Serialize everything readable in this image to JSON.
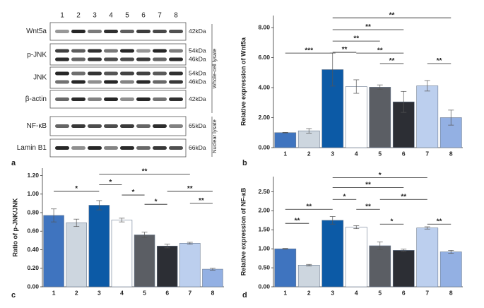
{
  "blot": {
    "lanes": [
      "1",
      "2",
      "3",
      "4",
      "5",
      "6",
      "7",
      "8"
    ],
    "rows": [
      {
        "label": "Wnt5a",
        "sizes": [
          "42kDa"
        ]
      },
      {
        "label": "p-JNK",
        "sizes": [
          "54kDa",
          "46kDa"
        ]
      },
      {
        "label": "JNK",
        "sizes": [
          "54kDa",
          "46kDa"
        ]
      },
      {
        "label": "β-actin",
        "sizes": [
          "42kDa"
        ]
      },
      {
        "label": "NF-κB",
        "sizes": [
          "65kDa"
        ]
      },
      {
        "label": "Lamin B1",
        "sizes": [
          "66kDa"
        ]
      }
    ],
    "groups": [
      "Whole-cell lysate",
      "Nuclear lysate"
    ]
  },
  "panel_labels": [
    "a",
    "b",
    "c",
    "d"
  ],
  "chart_data": [
    {
      "type": "bar",
      "ylabel": "Relative expression of Wnt5a",
      "categories": [
        "1",
        "2",
        "3",
        "4",
        "5",
        "6",
        "7",
        "8"
      ],
      "values": [
        1.0,
        1.12,
        5.2,
        4.07,
        4.03,
        3.05,
        4.12,
        2.0
      ],
      "errors": [
        0.02,
        0.15,
        1.1,
        0.45,
        0.15,
        0.7,
        0.35,
        0.5
      ],
      "colors": [
        "#3f74bf",
        "#cdd6df",
        "#0c5aa6",
        "#ffffff",
        "#5b5e64",
        "#2c2e34",
        "#bccfee",
        "#93b0e3"
      ],
      "ylim": [
        0,
        8.8
      ],
      "yticks": [
        {
          "value": 0,
          "label": "0.00"
        },
        {
          "value": 2,
          "label": "2.00"
        },
        {
          "value": 4,
          "label": "4.00"
        },
        {
          "value": 6,
          "label": "6.00"
        },
        {
          "value": 8,
          "label": "8.00"
        }
      ],
      "brackets": [
        {
          "from": "3",
          "to": "8",
          "y": 8.65,
          "label": "**"
        },
        {
          "from": "3",
          "to": "6",
          "y": 7.86,
          "label": "**"
        },
        {
          "from": "3",
          "to": "5",
          "y": 7.1,
          "label": "**"
        },
        {
          "from": "1",
          "to": "3",
          "y": 6.3,
          "label": "***"
        },
        {
          "from": "3",
          "to": "4",
          "y": 6.35,
          "label": "**"
        },
        {
          "from": "4",
          "to": "6",
          "y": 6.3,
          "label": "**"
        },
        {
          "from": "5",
          "to": "6",
          "y": 5.6,
          "label": "**"
        },
        {
          "from": "7",
          "to": "8",
          "y": 5.6,
          "label": "**"
        }
      ]
    },
    {
      "type": "bar",
      "ylabel": "Ratio of p-JNK/JNK",
      "categories": [
        "1",
        "2",
        "3",
        "4",
        "5",
        "6",
        "7",
        "8"
      ],
      "values": [
        0.77,
        0.69,
        0.88,
        0.72,
        0.56,
        0.44,
        0.47,
        0.19
      ],
      "errors": [
        0.07,
        0.04,
        0.05,
        0.02,
        0.03,
        0.02,
        0.01,
        0.01
      ],
      "colors": [
        "#3f74bf",
        "#cdd6df",
        "#0c5aa6",
        "#ffffff",
        "#5b5e64",
        "#2c2e34",
        "#bccfee",
        "#93b0e3"
      ],
      "ylim": [
        0,
        1.28
      ],
      "yticks": [
        {
          "value": 0,
          "label": "0.00"
        },
        {
          "value": 0.2,
          "label": "0.20"
        },
        {
          "value": 0.4,
          "label": "0.40"
        },
        {
          "value": 0.6,
          "label": "0.60"
        },
        {
          "value": 0.8,
          "label": "0.80"
        },
        {
          "value": 1.0,
          "label": "1.00"
        },
        {
          "value": 1.2,
          "label": "1.20"
        }
      ],
      "brackets": [
        {
          "from": "3",
          "to": "7",
          "y": 1.215,
          "label": "**"
        },
        {
          "from": "3",
          "to": "4",
          "y": 1.1,
          "label": "*"
        },
        {
          "from": "1",
          "to": "3",
          "y": 1.03,
          "label": "*"
        },
        {
          "from": "6",
          "to": "8",
          "y": 1.03,
          "label": "**"
        },
        {
          "from": "4",
          "to": "5",
          "y": 0.99,
          "label": "*"
        },
        {
          "from": "5",
          "to": "6",
          "y": 0.89,
          "label": "*"
        },
        {
          "from": "7",
          "to": "8",
          "y": 0.9,
          "label": "**"
        }
      ]
    },
    {
      "type": "bar",
      "ylabel": "Relative expression of NF-κB",
      "categories": [
        "1",
        "2",
        "3",
        "4",
        "5",
        "6",
        "7",
        "8"
      ],
      "values": [
        1.0,
        0.57,
        1.75,
        1.57,
        1.08,
        0.96,
        1.55,
        0.92
      ],
      "errors": [
        0.01,
        0.02,
        0.1,
        0.04,
        0.1,
        0.03,
        0.03,
        0.04
      ],
      "colors": [
        "#3f74bf",
        "#cdd6df",
        "#0c5aa6",
        "#ffffff",
        "#5b5e64",
        "#2c2e34",
        "#bccfee",
        "#93b0e3"
      ],
      "ylim": [
        0,
        2.9
      ],
      "yticks": [
        {
          "value": 0,
          "label": "0.00"
        },
        {
          "value": 0.5,
          "label": "0.50"
        },
        {
          "value": 1.0,
          "label": "1.00"
        },
        {
          "value": 1.5,
          "label": "1.50"
        },
        {
          "value": 2.0,
          "label": "2.00"
        },
        {
          "value": 2.5,
          "label": "2.50"
        }
      ],
      "brackets": [
        {
          "from": "3",
          "to": "7",
          "y": 2.87,
          "label": "*"
        },
        {
          "from": "3",
          "to": "6",
          "y": 2.61,
          "label": "**"
        },
        {
          "from": "3",
          "to": "4",
          "y": 2.3,
          "label": "*"
        },
        {
          "from": "5",
          "to": "7",
          "y": 2.3,
          "label": "**"
        },
        {
          "from": "1",
          "to": "3",
          "y": 2.04,
          "label": "**"
        },
        {
          "from": "4",
          "to": "5",
          "y": 2.04,
          "label": "**"
        },
        {
          "from": "1",
          "to": "2",
          "y": 1.67,
          "label": "**"
        },
        {
          "from": "5",
          "to": "6",
          "y": 1.65,
          "label": "*"
        },
        {
          "from": "7",
          "to": "8",
          "y": 1.65,
          "label": "**"
        }
      ]
    }
  ]
}
